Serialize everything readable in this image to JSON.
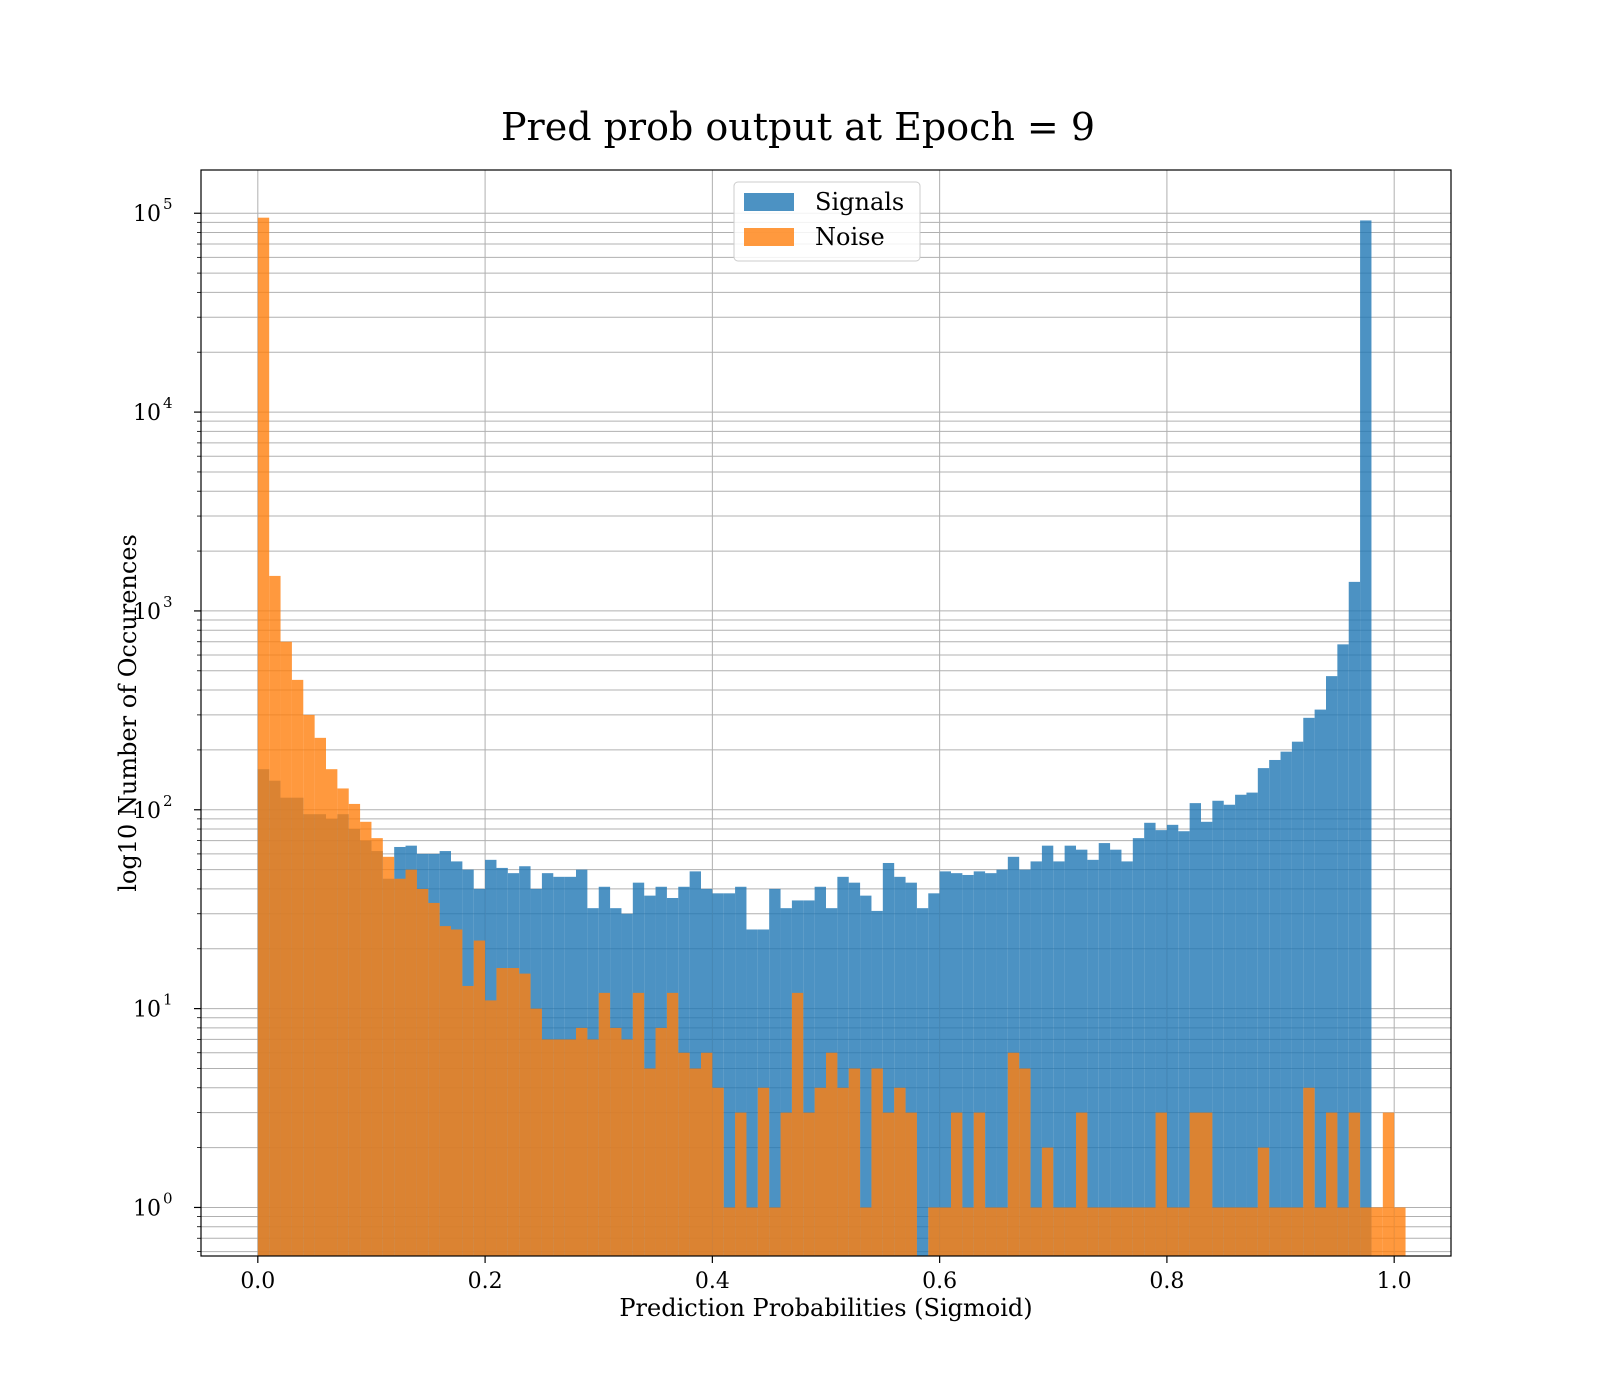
{
  "chart_data": {
    "type": "histogram",
    "title": "Pred prob output at Epoch = 9",
    "xlabel": "Prediction Probabilities (Sigmoid)",
    "ylabel": "log10 Number of Occurences",
    "xlim": [
      -0.05,
      1.05
    ],
    "ylim": [
      0.57,
      165000
    ],
    "yscale": "log",
    "grid": true,
    "legend_position": "upper center",
    "bin_width": 0.01,
    "x_ticks": [
      0.0,
      0.2,
      0.4,
      0.6,
      0.8,
      1.0
    ],
    "x_tick_labels": [
      "0.0",
      "0.2",
      "0.4",
      "0.6",
      "0.8",
      "1.0"
    ],
    "y_ticks": [
      {
        "value": 1,
        "base": "10",
        "exp": "0"
      },
      {
        "value": 10,
        "base": "10",
        "exp": "1"
      },
      {
        "value": 100,
        "base": "10",
        "exp": "2"
      },
      {
        "value": 1000,
        "base": "10",
        "exp": "3"
      },
      {
        "value": 10000,
        "base": "10",
        "exp": "4"
      },
      {
        "value": 100000,
        "base": "10",
        "exp": "5"
      }
    ],
    "series": [
      {
        "name": "Signals",
        "color": "#1f77b4",
        "values": [
          160,
          140,
          115,
          115,
          95,
          95,
          90,
          95,
          80,
          70,
          62,
          45,
          65,
          66,
          60,
          60,
          62,
          55,
          50,
          40,
          56,
          51,
          48,
          52,
          40,
          48,
          46,
          46,
          50,
          32,
          41,
          32,
          30,
          43,
          37,
          41,
          36,
          41,
          49,
          40,
          38,
          38,
          41,
          25,
          25,
          40,
          32,
          35,
          35,
          41,
          32,
          46,
          43,
          37,
          31,
          54,
          46,
          43,
          32,
          38,
          49,
          48,
          47,
          49,
          48,
          50,
          58,
          50,
          55,
          66,
          55,
          66,
          63,
          56,
          68,
          63,
          55,
          72,
          86,
          79,
          84,
          78,
          108,
          87,
          111,
          106,
          119,
          122,
          162,
          178,
          196,
          220,
          290,
          319,
          470,
          679,
          1400,
          92000,
          0,
          0,
          0
        ]
      },
      {
        "name": "Noise",
        "color": "#ff7f0e",
        "values": [
          95000,
          1500,
          700,
          450,
          300,
          230,
          160,
          128,
          107,
          87,
          72,
          58,
          45,
          50,
          40,
          34,
          26,
          25,
          13,
          22,
          11,
          16,
          16,
          15,
          10,
          7,
          7,
          7,
          8,
          7,
          12,
          8,
          7,
          12,
          5,
          8,
          12,
          6,
          5,
          6,
          4,
          1,
          3,
          1,
          4,
          1,
          3,
          12,
          3,
          4,
          6,
          4,
          5,
          1,
          5,
          3,
          4,
          3,
          0,
          1,
          1,
          3,
          1,
          3,
          1,
          1,
          6,
          5,
          1,
          2,
          1,
          1,
          3,
          1,
          1,
          1,
          1,
          1,
          1,
          3,
          1,
          1,
          3,
          3,
          1,
          1,
          1,
          1,
          2,
          1,
          1,
          1,
          4,
          1,
          3,
          1,
          3,
          1,
          1,
          3,
          1
        ]
      }
    ]
  }
}
